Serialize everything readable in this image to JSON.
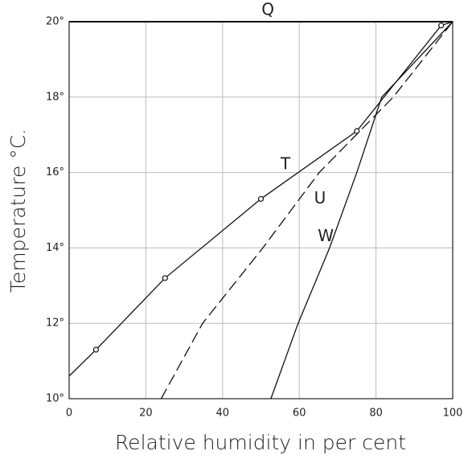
{
  "chart_data": {
    "type": "line",
    "xlabel": "Relative humidity in per cent",
    "ylabel": "Temperature °C.",
    "xlim": [
      0,
      100
    ],
    "ylim": [
      10,
      20
    ],
    "xticks": [
      0,
      20,
      40,
      60,
      80,
      100
    ],
    "yticks": [
      {
        "value": 10,
        "label": "10°"
      },
      {
        "value": 12,
        "label": "12°"
      },
      {
        "value": 14,
        "label": "14°"
      },
      {
        "value": 16,
        "label": "16°"
      },
      {
        "value": 18,
        "label": "18°"
      },
      {
        "value": 20,
        "label": "20°"
      }
    ],
    "grid": true,
    "series": [
      {
        "name": "Q",
        "color": "#111",
        "dashed": false,
        "markers": false,
        "x": [
          0,
          100
        ],
        "values": [
          20,
          20
        ],
        "label_x": 51.8,
        "label_y": 20.3
      },
      {
        "name": "T",
        "color": "#111",
        "dashed": false,
        "markers": true,
        "x": [
          0,
          7,
          25,
          50,
          75,
          97,
          100
        ],
        "values": [
          10.6,
          11.3,
          13.2,
          15.3,
          17.1,
          19.9,
          20
        ],
        "label_x": 56.4,
        "label_y": 16.2
      },
      {
        "name": "U",
        "color": "#111",
        "dashed": true,
        "markers": false,
        "x": [
          24,
          34.8,
          50.5,
          65.2,
          84.5,
          100
        ],
        "values": [
          10,
          12,
          14,
          16,
          18,
          20
        ],
        "label_x": 65.4,
        "label_y": 15.3
      },
      {
        "name": "W",
        "color": "#111",
        "dashed": false,
        "markers": false,
        "x": [
          52.6,
          59.7,
          67.9,
          75,
          81.5,
          100
        ],
        "values": [
          10,
          12,
          14,
          16,
          18,
          20
        ],
        "label_x": 66.9,
        "label_y": 14.3
      }
    ]
  }
}
